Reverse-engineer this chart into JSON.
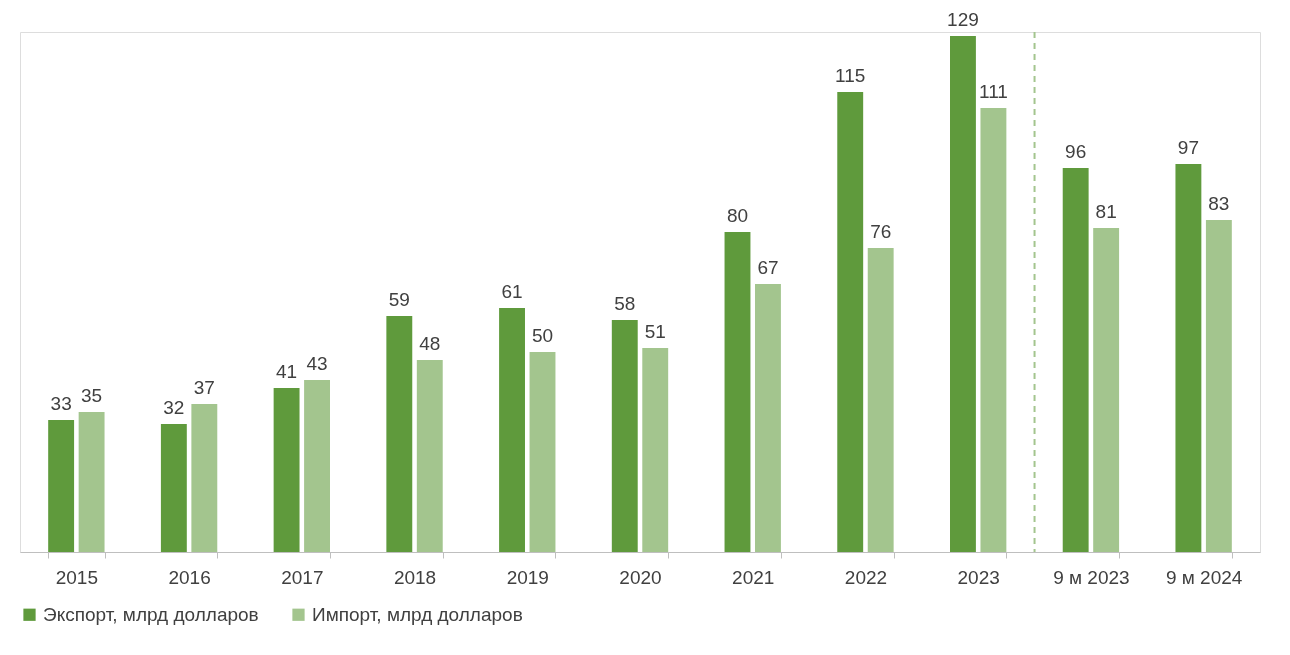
{
  "chart_data": {
    "type": "bar",
    "categories": [
      "2015",
      "2016",
      "2017",
      "2018",
      "2019",
      "2020",
      "2021",
      "2022",
      "2023",
      "9 м 2023",
      "9 м 2024"
    ],
    "series": [
      {
        "name": "Экспорт, млрд долларов",
        "color": "#5f9a3c",
        "values": [
          33,
          32,
          41,
          59,
          61,
          58,
          80,
          115,
          129,
          96,
          97
        ]
      },
      {
        "name": "Импорт, млрд долларов",
        "color": "#a3c58e",
        "values": [
          35,
          37,
          43,
          48,
          50,
          51,
          67,
          76,
          111,
          81,
          83
        ]
      }
    ],
    "data_labels": true,
    "legend": "bottom",
    "tick_labels": "x",
    "grid": false,
    "ref_lines": [
      {
        "axis": "x",
        "value": "9 м 2023",
        "color": "#a3c58e",
        "line_style": "dashed"
      }
    ]
  }
}
